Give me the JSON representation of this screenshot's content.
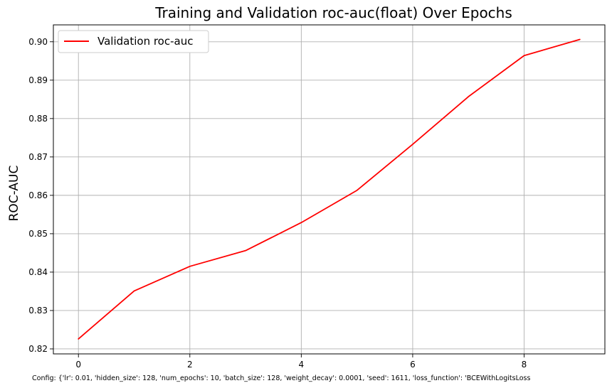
{
  "chart_data": {
    "type": "line",
    "title": "Training and Validation roc-auc(float) Over Epochs",
    "xlabel": "",
    "ylabel": "ROC-AUC",
    "x": [
      0,
      1,
      2,
      3,
      4,
      5,
      6,
      7,
      8,
      9
    ],
    "series": [
      {
        "name": "Validation roc-auc",
        "color": "#ff0000",
        "values": [
          0.8226,
          0.8351,
          0.8415,
          0.8456,
          0.8529,
          0.8613,
          0.8733,
          0.8857,
          0.8964,
          0.9006
        ]
      }
    ],
    "xlim": [
      -0.45,
      9.45
    ],
    "ylim": [
      0.8187,
      0.9044
    ],
    "xticks": [
      0,
      2,
      4,
      6,
      8
    ],
    "yticks": [
      0.82,
      0.83,
      0.84,
      0.85,
      0.86,
      0.87,
      0.88,
      0.89,
      0.9
    ],
    "xtick_labels": [
      "0",
      "2",
      "4",
      "6",
      "8"
    ],
    "ytick_labels": [
      "0.82",
      "0.83",
      "0.84",
      "0.85",
      "0.86",
      "0.87",
      "0.88",
      "0.89",
      "0.90"
    ],
    "grid": true,
    "legend_position": "top-left"
  },
  "footer": {
    "config_text": "Config: {'lr': 0.01, 'hidden_size': 128, 'num_epochs': 10, 'batch_size': 128, 'weight_decay': 0.0001, 'seed': 1611, 'loss_function': 'BCEWithLogitsLoss"
  }
}
